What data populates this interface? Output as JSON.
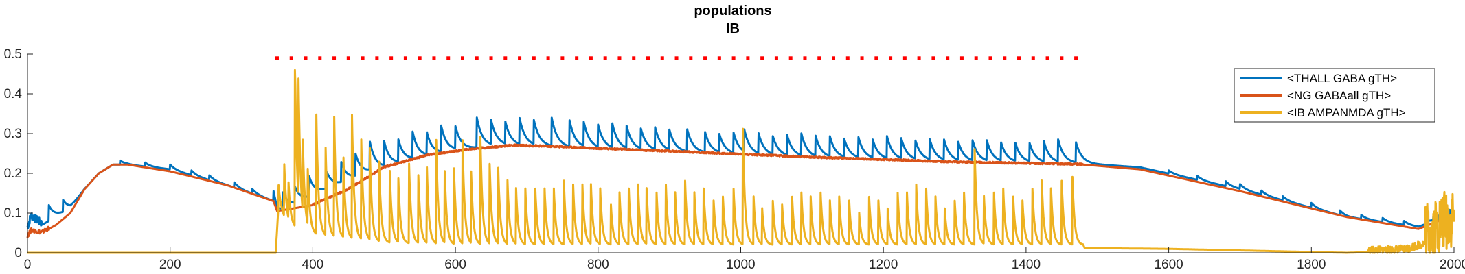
{
  "chart_data": {
    "type": "line",
    "title": [
      "populations",
      "IB"
    ],
    "xlabel": "",
    "ylabel": "",
    "xlim": [
      0,
      2000
    ],
    "ylim": [
      0,
      0.5
    ],
    "xticks": [
      0,
      200,
      400,
      600,
      800,
      1000,
      1200,
      1400,
      1600,
      1800,
      2000
    ],
    "yticks": [
      0,
      0.1,
      0.2,
      0.3,
      0.4,
      0.5
    ],
    "ytick_labels": [
      "0",
      "0.1",
      "0.2",
      "0.3",
      "0.4",
      "0.5"
    ],
    "grid": false,
    "legend_position": "top-right",
    "stimulus_marker": {
      "color": "#ff0000",
      "y": 0.49,
      "x_start": 350,
      "x_end": 1480,
      "spacing": 20
    },
    "series": [
      {
        "name": "<THALL GABA gTH>",
        "color": "#0072BD",
        "baseline": [
          [
            0,
            0.06
          ],
          [
            5,
            0.09
          ],
          [
            20,
            0.07
          ],
          [
            40,
            0.09
          ],
          [
            60,
            0.11
          ],
          [
            80,
            0.16
          ],
          [
            100,
            0.2
          ],
          [
            120,
            0.222
          ],
          [
            140,
            0.222
          ],
          [
            200,
            0.21
          ],
          [
            280,
            0.17
          ],
          [
            345,
            0.13
          ],
          [
            350,
            0.1
          ],
          [
            420,
            0.16
          ],
          [
            480,
            0.205
          ],
          [
            540,
            0.235
          ],
          [
            600,
            0.258
          ],
          [
            660,
            0.27
          ],
          [
            720,
            0.268
          ],
          [
            900,
            0.255
          ],
          [
            1100,
            0.24
          ],
          [
            1300,
            0.23
          ],
          [
            1480,
            0.225
          ],
          [
            1560,
            0.215
          ],
          [
            1700,
            0.16
          ],
          [
            1850,
            0.09
          ],
          [
            1950,
            0.065
          ],
          [
            2000,
            0.1
          ]
        ],
        "pulses": [
          [
            30,
            0.04
          ],
          [
            50,
            0.03
          ],
          [
            130,
            0.01
          ],
          [
            165,
            0.01
          ],
          [
            200,
            0.012
          ],
          [
            230,
            0.012
          ],
          [
            255,
            0.012
          ],
          [
            290,
            0.013
          ],
          [
            315,
            0.012
          ],
          [
            345,
            0.025
          ],
          [
            358,
            0.04
          ],
          [
            375,
            0.04
          ],
          [
            395,
            0.05
          ],
          [
            420,
            0.04
          ],
          [
            440,
            0.05
          ],
          [
            460,
            0.055
          ],
          [
            480,
            0.07
          ],
          [
            500,
            0.06
          ],
          [
            520,
            0.055
          ],
          [
            540,
            0.065
          ],
          [
            560,
            0.055
          ],
          [
            580,
            0.065
          ],
          [
            600,
            0.055
          ],
          [
            630,
            0.075
          ],
          [
            650,
            0.06
          ],
          [
            670,
            0.055
          ],
          [
            690,
            0.065
          ],
          [
            710,
            0.06
          ],
          [
            735,
            0.07
          ],
          [
            760,
            0.065
          ],
          [
            780,
            0.06
          ],
          [
            800,
            0.055
          ],
          [
            820,
            0.06
          ],
          [
            840,
            0.055
          ],
          [
            860,
            0.05
          ],
          [
            880,
            0.055
          ],
          [
            900,
            0.05
          ],
          [
            925,
            0.055
          ],
          [
            950,
            0.05
          ],
          [
            970,
            0.045
          ],
          [
            990,
            0.05
          ],
          [
            1005,
            0.055
          ],
          [
            1025,
            0.05
          ],
          [
            1045,
            0.045
          ],
          [
            1065,
            0.05
          ],
          [
            1085,
            0.055
          ],
          [
            1105,
            0.05
          ],
          [
            1125,
            0.05
          ],
          [
            1145,
            0.045
          ],
          [
            1165,
            0.05
          ],
          [
            1185,
            0.045
          ],
          [
            1205,
            0.055
          ],
          [
            1225,
            0.05
          ],
          [
            1245,
            0.045
          ],
          [
            1265,
            0.05
          ],
          [
            1285,
            0.05
          ],
          [
            1305,
            0.045
          ],
          [
            1325,
            0.05
          ],
          [
            1345,
            0.05
          ],
          [
            1365,
            0.045
          ],
          [
            1385,
            0.045
          ],
          [
            1405,
            0.045
          ],
          [
            1425,
            0.05
          ],
          [
            1445,
            0.055
          ],
          [
            1470,
            0.05
          ],
          [
            1600,
            0.008
          ],
          [
            1640,
            0.01
          ],
          [
            1680,
            0.012
          ],
          [
            1700,
            0.012
          ],
          [
            1730,
            0.01
          ],
          [
            1760,
            0.01
          ],
          [
            1800,
            0.012
          ],
          [
            1840,
            0.012
          ],
          [
            1870,
            0.01
          ],
          [
            1900,
            0.01
          ],
          [
            1930,
            0.01
          ],
          [
            1960,
            0.01
          ],
          [
            1980,
            0.012
          ]
        ],
        "decay": 8,
        "noise": [
          [
            0,
            20,
            0.02
          ],
          [
            1970,
            2000,
            0.015
          ]
        ]
      },
      {
        "name": "<NG GABAall gTH>",
        "color": "#D95319",
        "baseline": [
          [
            0,
            0.04
          ],
          [
            5,
            0.055
          ],
          [
            20,
            0.05
          ],
          [
            40,
            0.07
          ],
          [
            60,
            0.1
          ],
          [
            80,
            0.16
          ],
          [
            100,
            0.2
          ],
          [
            120,
            0.222
          ],
          [
            140,
            0.222
          ],
          [
            200,
            0.205
          ],
          [
            280,
            0.17
          ],
          [
            345,
            0.13
          ],
          [
            350,
            0.105
          ],
          [
            400,
            0.12
          ],
          [
            450,
            0.16
          ],
          [
            500,
            0.215
          ],
          [
            560,
            0.245
          ],
          [
            620,
            0.26
          ],
          [
            680,
            0.27
          ],
          [
            720,
            0.268
          ],
          [
            900,
            0.255
          ],
          [
            1100,
            0.24
          ],
          [
            1300,
            0.228
          ],
          [
            1480,
            0.222
          ],
          [
            1560,
            0.21
          ],
          [
            1700,
            0.155
          ],
          [
            1850,
            0.09
          ],
          [
            1950,
            0.06
          ],
          [
            2000,
            0.095
          ]
        ],
        "pulses": [],
        "decay": 8,
        "noise": [
          [
            0,
            30,
            0.01
          ],
          [
            400,
            1480,
            0.004
          ]
        ]
      },
      {
        "name": "<IB AMPANMDA gTH>",
        "color": "#EDB120",
        "baseline": [
          [
            0,
            0.0
          ],
          [
            348,
            0.0
          ],
          [
            352,
            0.12
          ],
          [
            365,
            0.07
          ],
          [
            390,
            0.05
          ],
          [
            420,
            0.04
          ],
          [
            500,
            0.025
          ],
          [
            600,
            0.02
          ],
          [
            800,
            0.02
          ],
          [
            1000,
            0.02
          ],
          [
            1200,
            0.02
          ],
          [
            1480,
            0.02
          ],
          [
            1482,
            0.012
          ],
          [
            1600,
            0.01
          ],
          [
            1800,
            0.002
          ],
          [
            1850,
            0.0
          ],
          [
            1930,
            0.005
          ],
          [
            1960,
            0.02
          ],
          [
            2000,
            0.06
          ]
        ],
        "pulses": [
          [
            352,
            0.05
          ],
          [
            360,
            0.13
          ],
          [
            366,
            0.09
          ],
          [
            375,
            0.42
          ],
          [
            380,
            0.3
          ],
          [
            386,
            0.18
          ],
          [
            393,
            0.14
          ],
          [
            405,
            0.3
          ],
          [
            418,
            0.22
          ],
          [
            430,
            0.3
          ],
          [
            443,
            0.2
          ],
          [
            455,
            0.31
          ],
          [
            468,
            0.25
          ],
          [
            480,
            0.23
          ],
          [
            493,
            0.2
          ],
          [
            508,
            0.18
          ],
          [
            520,
            0.16
          ],
          [
            535,
            0.2
          ],
          [
            548,
            0.17
          ],
          [
            560,
            0.19
          ],
          [
            573,
            0.26
          ],
          [
            585,
            0.18
          ],
          [
            598,
            0.19
          ],
          [
            610,
            0.26
          ],
          [
            622,
            0.18
          ],
          [
            635,
            0.27
          ],
          [
            648,
            0.2
          ],
          [
            660,
            0.19
          ],
          [
            673,
            0.16
          ],
          [
            685,
            0.14
          ],
          [
            698,
            0.14
          ],
          [
            712,
            0.14
          ],
          [
            725,
            0.14
          ],
          [
            738,
            0.14
          ],
          [
            752,
            0.16
          ],
          [
            765,
            0.15
          ],
          [
            778,
            0.15
          ],
          [
            790,
            0.15
          ],
          [
            803,
            0.14
          ],
          [
            818,
            0.1
          ],
          [
            830,
            0.13
          ],
          [
            843,
            0.14
          ],
          [
            856,
            0.15
          ],
          [
            868,
            0.14
          ],
          [
            882,
            0.13
          ],
          [
            895,
            0.15
          ],
          [
            908,
            0.13
          ],
          [
            922,
            0.16
          ],
          [
            935,
            0.13
          ],
          [
            948,
            0.14
          ],
          [
            962,
            0.11
          ],
          [
            975,
            0.12
          ],
          [
            990,
            0.14
          ],
          [
            1003,
            0.29
          ],
          [
            1018,
            0.12
          ],
          [
            1030,
            0.09
          ],
          [
            1045,
            0.11
          ],
          [
            1058,
            0.1
          ],
          [
            1072,
            0.12
          ],
          [
            1085,
            0.13
          ],
          [
            1098,
            0.12
          ],
          [
            1112,
            0.13
          ],
          [
            1125,
            0.11
          ],
          [
            1138,
            0.12
          ],
          [
            1152,
            0.11
          ],
          [
            1166,
            0.08
          ],
          [
            1180,
            0.12
          ],
          [
            1193,
            0.11
          ],
          [
            1206,
            0.09
          ],
          [
            1220,
            0.13
          ],
          [
            1233,
            0.13
          ],
          [
            1246,
            0.15
          ],
          [
            1260,
            0.14
          ],
          [
            1273,
            0.12
          ],
          [
            1286,
            0.09
          ],
          [
            1300,
            0.11
          ],
          [
            1313,
            0.13
          ],
          [
            1328,
            0.24
          ],
          [
            1341,
            0.12
          ],
          [
            1355,
            0.13
          ],
          [
            1368,
            0.14
          ],
          [
            1382,
            0.12
          ],
          [
            1395,
            0.11
          ],
          [
            1409,
            0.14
          ],
          [
            1422,
            0.16
          ],
          [
            1435,
            0.14
          ],
          [
            1450,
            0.16
          ],
          [
            1465,
            0.17
          ]
        ],
        "decay": 3,
        "noise": [
          [
            1880,
            1960,
            0.02
          ],
          [
            1960,
            2000,
            0.16
          ]
        ]
      }
    ]
  }
}
